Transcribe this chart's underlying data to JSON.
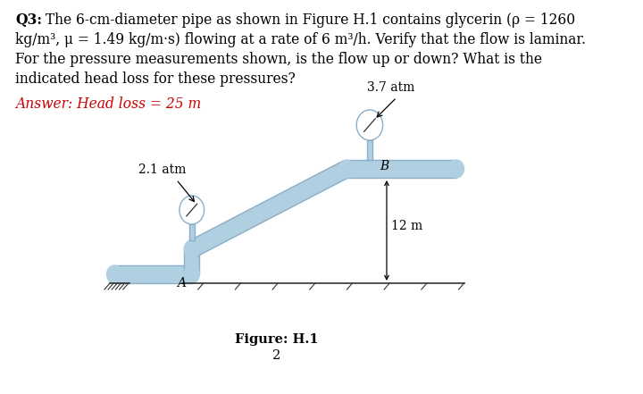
{
  "line1": "Q3: The 6-cm-diameter pipe as shown in Figure H.1 contains glycerin (ρ = 1260",
  "line2": "kg/m³, μ = 1.49 kg/m·s) flowing at a rate of 6 m³/h. Verify that the flow is laminar.",
  "line3": "For the pressure measurements shown, is the flow up or down? What is the",
  "line4": "indicated head loss for these pressures?",
  "answer_text": "Answer: Head loss = 25 m",
  "answer_color": "#cc0000",
  "fig_label": "Figure: H.1",
  "page_number": "2",
  "pressure_A": "2.1 atm",
  "pressure_B": "3.7 atm",
  "label_A": "A",
  "label_B": "B",
  "dim_label": "12 m",
  "pipe_color": "#b0cfe0",
  "pipe_edge_color": "#8aafc8",
  "bg_color": "#ffffff",
  "text_color": "#000000",
  "font": "serif"
}
